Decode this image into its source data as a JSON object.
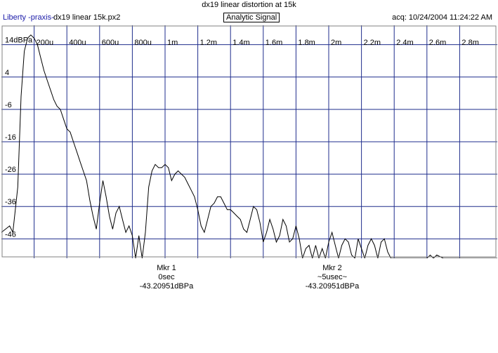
{
  "title": "dx19 linear distortion at 15k",
  "header": {
    "app": "Liberty -praxis-",
    "file": "dx19 linear 15k.px2",
    "signal_button": "Analytic Signal",
    "acq": "acq: 10/24/2004 11:24:22 AM"
  },
  "chart_data": {
    "type": "line",
    "title": "dx19 linear distortion at 15k",
    "x_unit": "s",
    "xlim": [
      0,
      0.00303
    ],
    "ylim": [
      -52,
      20
    ],
    "grid": true,
    "x_ticks": [
      {
        "value": 0.0002,
        "label": "200u"
      },
      {
        "value": 0.0004,
        "label": "400u"
      },
      {
        "value": 0.0006,
        "label": "600u"
      },
      {
        "value": 0.0008,
        "label": "800u"
      },
      {
        "value": 0.001,
        "label": "1m"
      },
      {
        "value": 0.0012,
        "label": "1.2m"
      },
      {
        "value": 0.0014,
        "label": "1.4m"
      },
      {
        "value": 0.0016,
        "label": "1.6m"
      },
      {
        "value": 0.0018,
        "label": "1.8m"
      },
      {
        "value": 0.002,
        "label": "2m"
      },
      {
        "value": 0.0022,
        "label": "2.2m"
      },
      {
        "value": 0.0024,
        "label": "2.4m"
      },
      {
        "value": 0.0026,
        "label": "2.6m"
      },
      {
        "value": 0.0028,
        "label": "2.8m"
      }
    ],
    "y_ticks": [
      {
        "value": 14,
        "label": "14dBPa"
      },
      {
        "value": 4,
        "label": "4"
      },
      {
        "value": -6,
        "label": "-6"
      },
      {
        "value": -16,
        "label": "-16"
      },
      {
        "value": -26,
        "label": "-26"
      },
      {
        "value": -36,
        "label": "-36"
      },
      {
        "value": -46,
        "label": "-46"
      }
    ],
    "series": [
      {
        "x": [
          0.0,
          5e-05,
          7e-05,
          0.0001,
          0.00012,
          0.00014,
          0.00016,
          0.00018,
          0.0002,
          0.00022,
          0.00024,
          0.00026,
          0.00028,
          0.0003,
          0.00032,
          0.00034,
          0.00036,
          0.00038,
          0.0004,
          0.00042,
          0.00044,
          0.00046,
          0.00048,
          0.0005,
          0.00052,
          0.00054,
          0.00056,
          0.00058,
          0.0006,
          0.00062,
          0.00064,
          0.00066,
          0.00068,
          0.0007,
          0.00072,
          0.00074,
          0.00076,
          0.00078,
          0.0008,
          0.00082,
          0.00084,
          0.00086,
          0.00088,
          0.0009,
          0.00092,
          0.00094,
          0.00096,
          0.00098,
          0.001,
          0.00102,
          0.00104,
          0.00106,
          0.00108,
          0.0011,
          0.00112,
          0.00114,
          0.00116,
          0.00118,
          0.0012,
          0.00122,
          0.00124,
          0.00126,
          0.00128,
          0.0013,
          0.00132,
          0.00134,
          0.00136,
          0.00138,
          0.0014,
          0.00142,
          0.00144,
          0.00146,
          0.00148,
          0.0015,
          0.00152,
          0.00154,
          0.00156,
          0.00158,
          0.0016,
          0.00162,
          0.00164,
          0.00166,
          0.00168,
          0.0017,
          0.00172,
          0.00174,
          0.00176,
          0.00178,
          0.0018,
          0.00182,
          0.00184,
          0.00186,
          0.00188,
          0.0019,
          0.00192,
          0.00194,
          0.00196,
          0.00198,
          0.002,
          0.00202,
          0.00204,
          0.00206,
          0.00208,
          0.0021,
          0.00212,
          0.00214,
          0.00216,
          0.00218,
          0.0022,
          0.00222,
          0.00224,
          0.00226,
          0.00228,
          0.0023,
          0.00232,
          0.00234,
          0.00236,
          0.00238,
          0.0024,
          0.0025,
          0.0026,
          0.00262,
          0.00264,
          0.00266,
          0.0027,
          0.0028,
          0.00303
        ],
        "y": [
          -44,
          -42,
          -44,
          -30,
          -2,
          12,
          16,
          17,
          16,
          14,
          10,
          6,
          3,
          0,
          -3,
          -5,
          -6,
          -9,
          -12,
          -13,
          -16,
          -19,
          -22,
          -25,
          -28,
          -34,
          -39,
          -43,
          -35,
          -28,
          -33,
          -39,
          -43,
          -38,
          -36,
          -40,
          -44,
          -42,
          -45,
          -52,
          -45,
          -52,
          -44,
          -30,
          -25,
          -23,
          -24,
          -24,
          -23,
          -24,
          -28,
          -26,
          -25,
          -26,
          -27,
          -29,
          -31,
          -33,
          -37,
          -42,
          -44,
          -40,
          -36,
          -35,
          -33,
          -33,
          -35,
          -37,
          -37,
          -38,
          -39,
          -40,
          -43,
          -44,
          -40,
          -36,
          -37,
          -41,
          -47,
          -44,
          -40,
          -43,
          -47,
          -45,
          -40,
          -42,
          -47,
          -46,
          -42,
          -46,
          -52,
          -49,
          -48,
          -52,
          -48,
          -52,
          -49,
          -52,
          -47,
          -44,
          -48,
          -52,
          -48,
          -46,
          -47,
          -51,
          -52,
          -46,
          -49,
          -52,
          -48,
          -46,
          -48,
          -52,
          -47,
          -46,
          -50,
          -52,
          -52,
          -52,
          -52,
          -51,
          -52,
          -51,
          -52,
          -52,
          -52
        ]
      }
    ]
  },
  "markers": [
    {
      "label": "Mkr 1",
      "time": "0sec",
      "level": "-43.20951dBPa"
    },
    {
      "label": "Mkr 2",
      "time": "~5usec~",
      "level": "-43.20951dBPa"
    }
  ]
}
